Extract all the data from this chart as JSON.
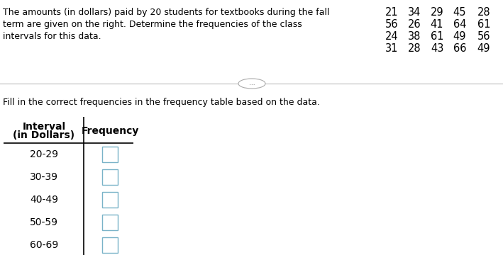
{
  "description_text": [
    "The amounts (in dollars) paid by 20 students for textbooks during the fall",
    "term are given on the right. Determine the frequencies of the class",
    "intervals for this data."
  ],
  "data_grid": [
    [
      21,
      34,
      29,
      45,
      28
    ],
    [
      56,
      26,
      41,
      64,
      61
    ],
    [
      24,
      38,
      61,
      49,
      56
    ],
    [
      31,
      28,
      43,
      66,
      49
    ]
  ],
  "divider_text": "...",
  "instruction_text": "Fill in the correct frequencies in the frequency table based on the data.",
  "table_header_col1_line1": "Interval",
  "table_header_col1_line2": "(in Dollars)",
  "table_header_col2": "Frequency",
  "intervals": [
    "20-29",
    "30-39",
    "40-49",
    "50-59",
    "60-69"
  ],
  "background_color": "#ffffff",
  "text_color": "#000000",
  "box_color": "#7ab3c8",
  "font_size_body": 9.0,
  "font_size_table_header": 10.0,
  "font_size_table_row": 10.0,
  "font_size_data": 10.5
}
